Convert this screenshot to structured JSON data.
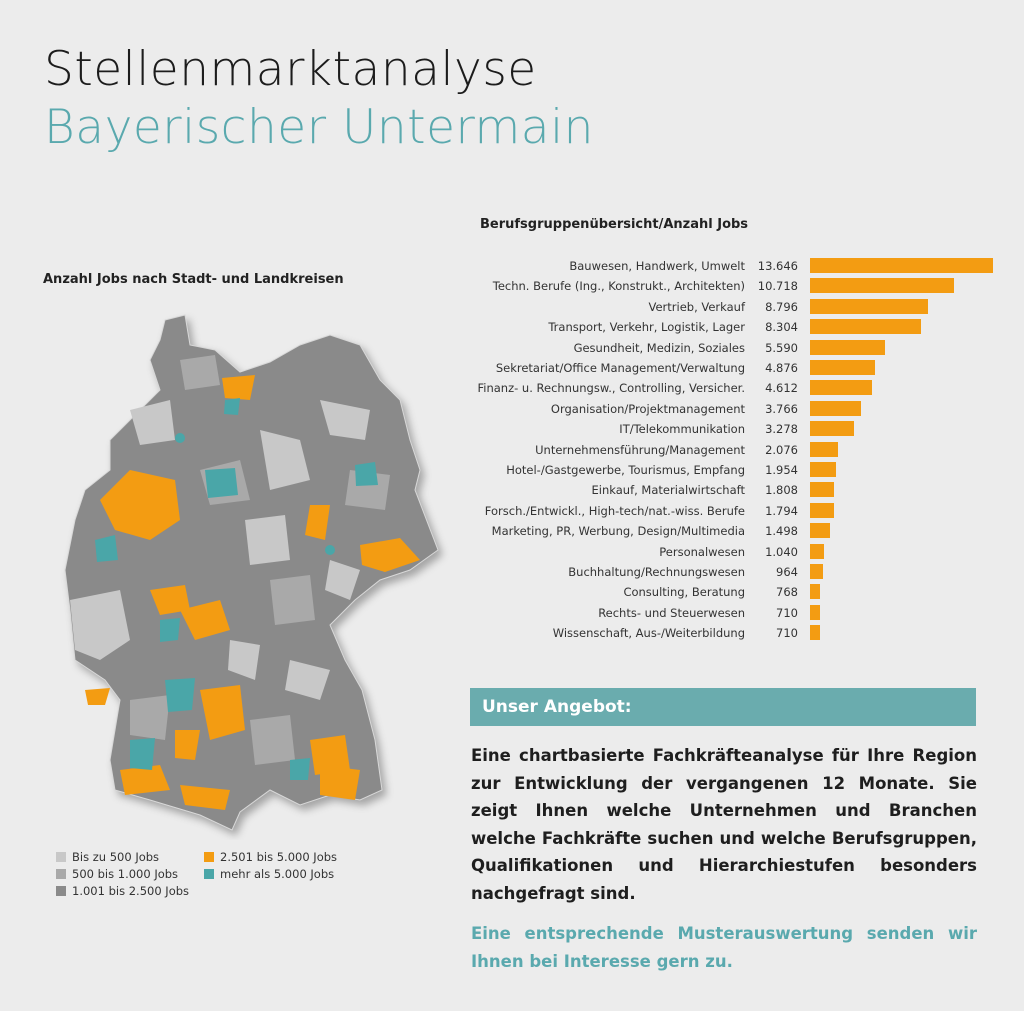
{
  "header": {
    "title": "Stellenmarktanalyse",
    "subtitle": "Bayerischer Untermain"
  },
  "map": {
    "title": "Anzahl Jobs nach Stadt- und Landkreisen",
    "legend": [
      {
        "label": "Bis zu 500 Jobs",
        "color": "#c8c8c8"
      },
      {
        "label": "500 bis 1.000 Jobs",
        "color": "#a9a9a9"
      },
      {
        "label": "1.001 bis 2.500 Jobs",
        "color": "#8a8a8a"
      },
      {
        "label": "2.501 bis 5.000 Jobs",
        "color": "#f39c12"
      },
      {
        "label": "mehr als 5.000 Jobs",
        "color": "#4aa6a8"
      }
    ]
  },
  "chart_data": {
    "type": "bar",
    "orientation": "horizontal",
    "title": "Berufsgruppenübersicht/Anzahl Jobs",
    "color": "#f39c12",
    "categories": [
      "Bauwesen, Handwerk, Umwelt",
      "Techn. Berufe (Ing., Konstrukt., Architekten)",
      "Vertrieb, Verkauf",
      "Transport, Verkehr, Logistik, Lager",
      "Gesundheit, Medizin, Soziales",
      "Sekretariat/Office Management/Verwaltung",
      "Finanz- u. Rechnungsw., Controlling, Versicher.",
      "Organisation/Projektmanagement",
      "IT/Telekommunikation",
      "Unternehmensführung/Management",
      "Hotel-/Gastgewerbe, Tourismus, Empfang",
      "Einkauf, Materialwirtschaft",
      "Forsch./Entwickl., High-tech/nat.-wiss. Berufe",
      "Marketing, PR, Werbung, Design/Multimedia",
      "Personalwesen",
      "Buchhaltung/Rechnungswesen",
      "Consulting, Beratung",
      "Rechts- und Steuerwesen",
      "Wissenschaft, Aus-/Weiterbildung"
    ],
    "values": [
      13646,
      10718,
      8796,
      8304,
      5590,
      4876,
      4612,
      3766,
      3278,
      2076,
      1954,
      1808,
      1794,
      1498,
      1040,
      964,
      768,
      710,
      710
    ],
    "value_labels": [
      "13.646",
      "10.718",
      "8.796",
      "8.304",
      "5.590",
      "4.876",
      "4.612",
      "3.766",
      "3.278",
      "2.076",
      "1.954",
      "1.808",
      "1.794",
      "1.498",
      "1.040",
      "964",
      "768",
      "710",
      "710"
    ]
  },
  "offer": {
    "heading": "Unser Angebot:",
    "body": "Eine chartbasierte Fachkräfteanalyse für Ihre Region zur Entwicklung der vergangenen 12 Monate. Sie zeigt Ihnen welche Unternehmen und Branchen welche Fachkräfte suchen und welche Berufsgruppen, Qualifikationen und Hierarchiestufen besonders nachgefragt sind.",
    "footer": "Eine entsprechende Musterauswertung senden wir Ihnen bei Interesse gern zu."
  }
}
